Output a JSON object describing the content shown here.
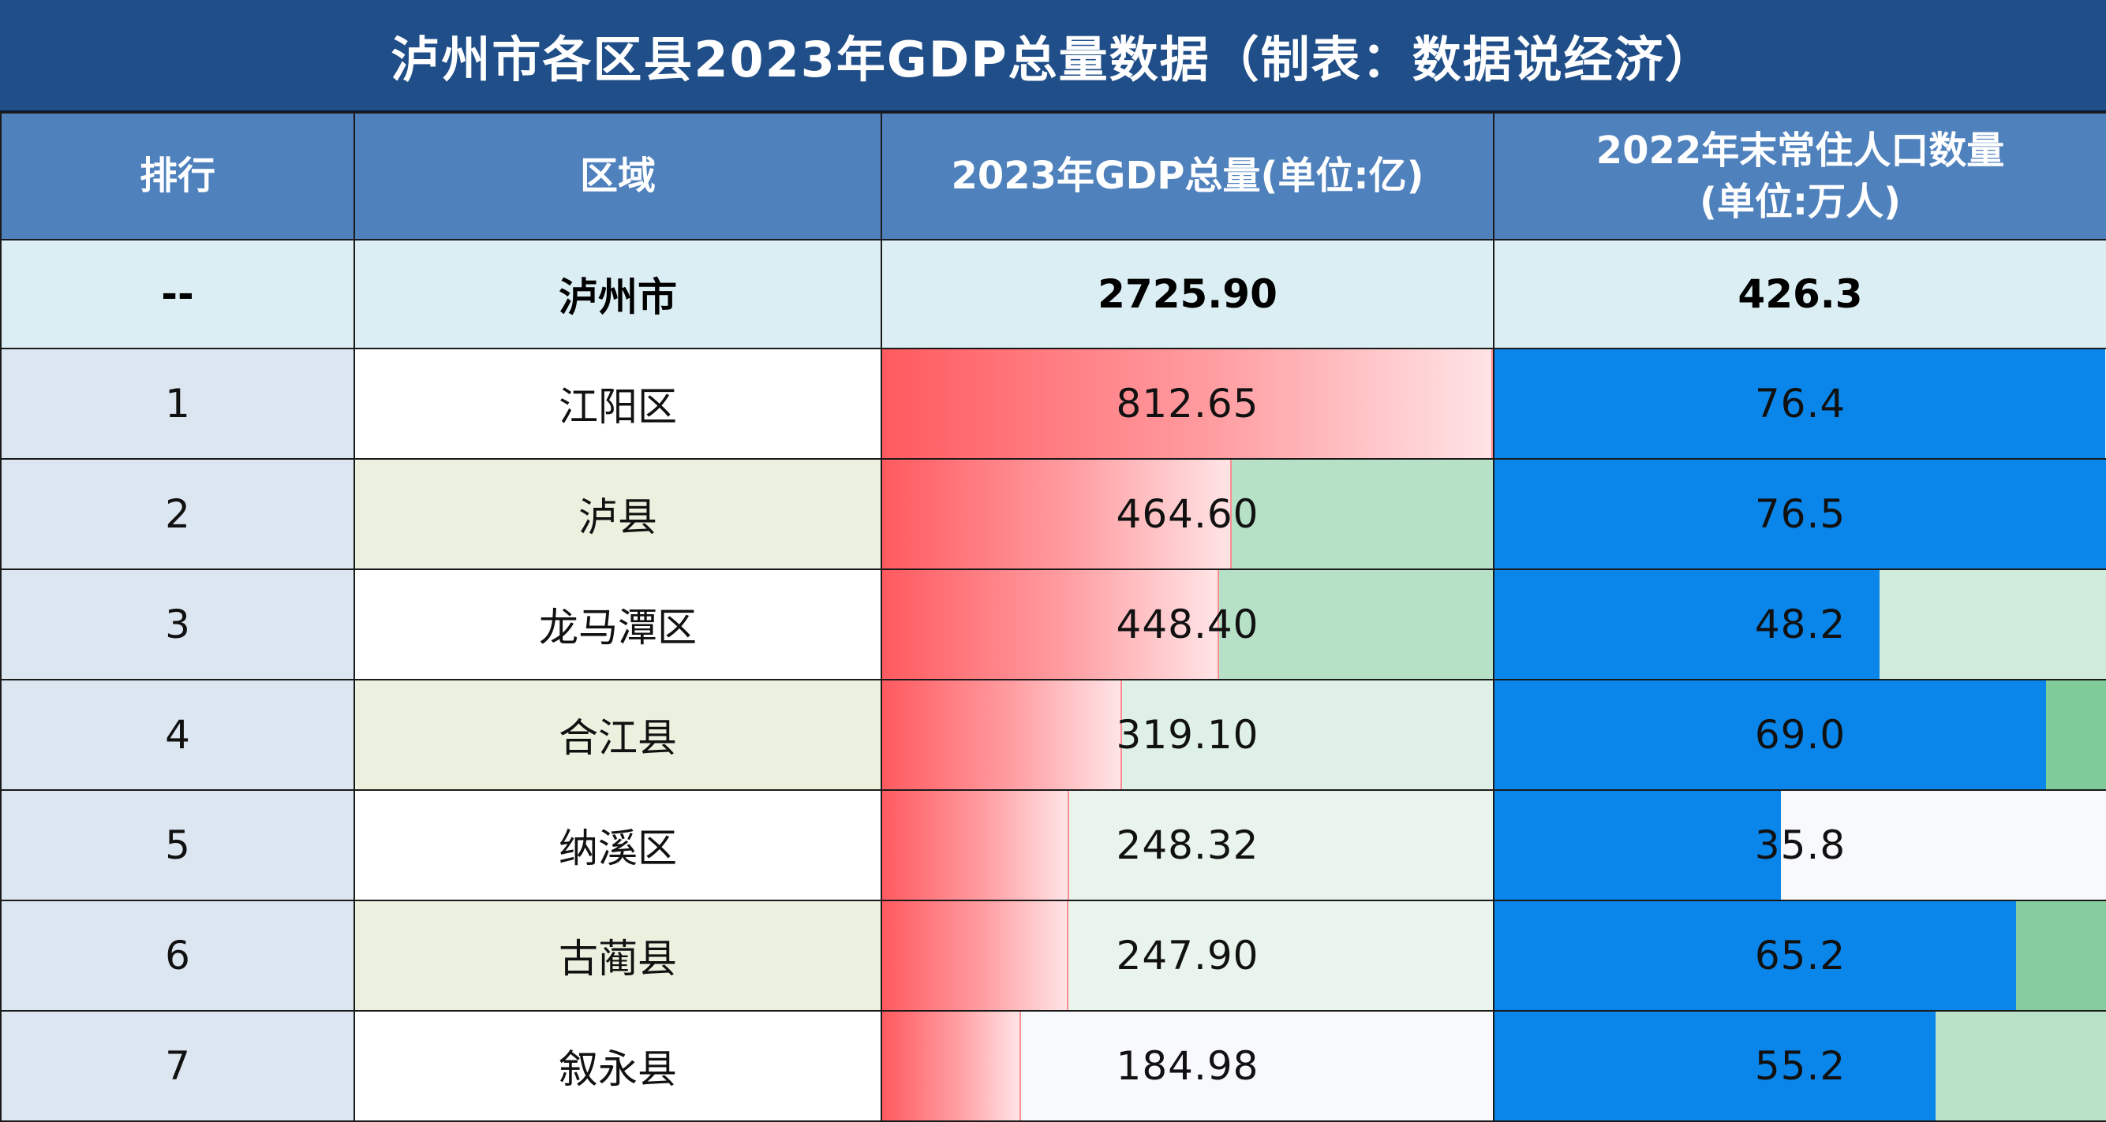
{
  "title": "泸州市各区县2023年GDP总量数据（制表：数据说经济）",
  "headers": {
    "rank": "排行",
    "region": "区域",
    "gdp": "2023年GDP总量(单位:亿)",
    "pop_line1": "2022年末常住人口数量",
    "pop_line2": "(单位:万人)"
  },
  "total": {
    "rank": "--",
    "region": "泸州市",
    "gdp": "2725.90",
    "pop": "426.3"
  },
  "rows": [
    {
      "rank": "1",
      "region": "江阳区",
      "gdp": "812.65",
      "pop": "76.4"
    },
    {
      "rank": "2",
      "region": "泸县",
      "gdp": "464.60",
      "pop": "76.5"
    },
    {
      "rank": "3",
      "region": "龙马潭区",
      "gdp": "448.40",
      "pop": "48.2"
    },
    {
      "rank": "4",
      "region": "合江县",
      "gdp": "319.10",
      "pop": "69.0"
    },
    {
      "rank": "5",
      "region": "纳溪区",
      "gdp": "248.32",
      "pop": "35.8"
    },
    {
      "rank": "6",
      "region": "古蔺县",
      "gdp": "247.90",
      "pop": "65.2"
    },
    {
      "rank": "7",
      "region": "叙永县",
      "gdp": "184.98",
      "pop": "55.2"
    }
  ],
  "colors": {
    "header_bg": "#4f81bd",
    "title_bg": "#1f4e89",
    "gdp_bar": "#ff5a5f",
    "pop_bar": "#0a86ea"
  },
  "gdp_cell_backgrounds": [
    "#ffffff",
    "#b7e1c7",
    "#b7e1c7",
    "#dff0e6",
    "#e8f4ec",
    "#e8f4ec",
    "#f8f9fc"
  ],
  "pop_cell_backgrounds": [
    "#ffffff",
    "#ffffff",
    "#d0eadb",
    "#7fcb99",
    "#f8f9fc",
    "#85cc9e",
    "#b9e2c8"
  ],
  "bar_scale": {
    "gdp_max": 812.65,
    "pop_max": 76.5
  }
}
